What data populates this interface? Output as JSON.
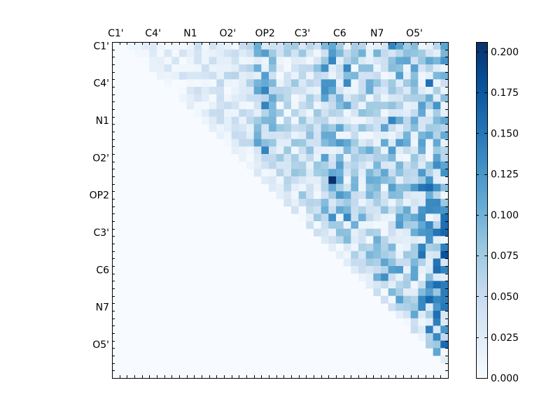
{
  "chart_data": {
    "type": "heatmap",
    "title": "",
    "xlabel": "",
    "ylabel": "",
    "tick_labels": [
      "C1'",
      "C4'",
      "N1",
      "O2'",
      "OP2",
      "C3'",
      "C6",
      "N7",
      "O5'"
    ],
    "x_ticks_position": "top",
    "n_rows": 45,
    "n_cols": 45,
    "grid": false,
    "colormap": "Blues",
    "colormap_stops": [
      "#f7fbff",
      "#deebf7",
      "#c6dbef",
      "#9ecae1",
      "#6baed6",
      "#4292c6",
      "#2171b5",
      "#08519c",
      "#08306b"
    ],
    "value_range": [
      0,
      0.206
    ],
    "colorbar": {
      "placement": "right",
      "ticks": [
        "0.000",
        "0.025",
        "0.050",
        "0.075",
        "0.100",
        "0.125",
        "0.150",
        "0.175",
        "0.200"
      ],
      "tick_values": [
        0,
        0.025,
        0.05,
        0.075,
        0.1,
        0.125,
        0.15,
        0.175,
        0.2
      ]
    },
    "layout_note_seed": 7,
    "highlights": [
      {
        "row": 18,
        "col": 29,
        "value": 0.206
      },
      {
        "row": 5,
        "col": 42,
        "value": 0.155
      },
      {
        "row": 0,
        "col": 37,
        "value": 0.14
      },
      {
        "row": 6,
        "col": 20,
        "value": 0.14
      },
      {
        "row": 8,
        "col": 20,
        "value": 0.14
      },
      {
        "row": 10,
        "col": 37,
        "value": 0.14
      },
      {
        "row": 14,
        "col": 20,
        "value": 0.14
      },
      {
        "row": 21,
        "col": 42,
        "value": 0.135
      },
      {
        "row": 23,
        "col": 29,
        "value": 0.13
      },
      {
        "row": 31,
        "col": 36,
        "value": 0.13
      },
      {
        "row": 41,
        "col": 43,
        "value": 0.11
      }
    ]
  }
}
